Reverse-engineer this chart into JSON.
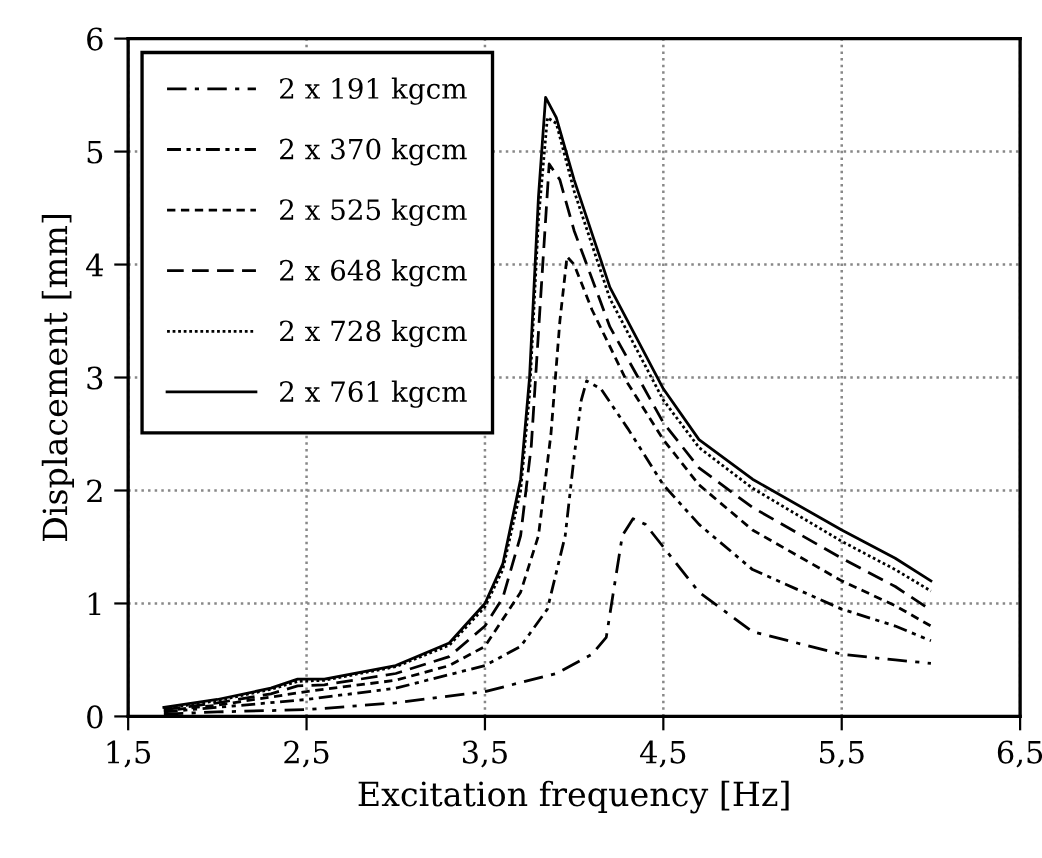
{
  "chart_data": {
    "type": "line",
    "xlabel": "Excitation frequency [Hz]",
    "ylabel": "Displacement [mm]",
    "xlim": [
      1.5,
      6.5
    ],
    "xticks": [
      {
        "value": 1.5,
        "label": "1,5"
      },
      {
        "value": 2.5,
        "label": "2,5"
      },
      {
        "value": 3.5,
        "label": "3,5"
      },
      {
        "value": 4.5,
        "label": "4,5"
      },
      {
        "value": 5.5,
        "label": "5,5"
      },
      {
        "value": 6.5,
        "label": "6,5"
      }
    ],
    "ylim": [
      0,
      6
    ],
    "yticks": [
      0,
      1,
      2,
      3,
      4,
      5,
      6
    ],
    "grid": true,
    "legend": "top left",
    "marker": "none",
    "series": [
      {
        "name": "2 x 191 kgcm",
        "color": "#000000",
        "line_style": "dashdot",
        "x": [
          1.7,
          2.0,
          2.5,
          3.0,
          3.5,
          3.9,
          4.1,
          4.18,
          4.22,
          4.27,
          4.33,
          4.4,
          4.5,
          4.7,
          5.0,
          5.5,
          5.8,
          6.0
        ],
        "values": [
          0.02,
          0.04,
          0.06,
          0.12,
          0.22,
          0.38,
          0.55,
          0.7,
          1.1,
          1.6,
          1.75,
          1.7,
          1.5,
          1.1,
          0.75,
          0.55,
          0.5,
          0.47
        ]
      },
      {
        "name": "2 x 370 kgcm",
        "color": "#000000",
        "line_style": "dashdotdot",
        "x": [
          1.7,
          2.0,
          2.5,
          3.0,
          3.5,
          3.7,
          3.85,
          3.95,
          4.0,
          4.04,
          4.07,
          4.15,
          4.3,
          4.5,
          4.7,
          5.0,
          5.5,
          5.8,
          6.0
        ],
        "values": [
          0.04,
          0.08,
          0.15,
          0.25,
          0.45,
          0.62,
          0.95,
          1.6,
          2.3,
          2.8,
          2.97,
          2.9,
          2.55,
          2.05,
          1.7,
          1.3,
          0.95,
          0.8,
          0.67
        ]
      },
      {
        "name": "2 x 525 kgcm",
        "color": "#000000",
        "line_style": "dotted",
        "x": [
          1.7,
          2.0,
          2.5,
          3.0,
          3.3,
          3.5,
          3.7,
          3.8,
          3.87,
          3.92,
          3.96,
          4.0,
          4.1,
          4.3,
          4.5,
          4.7,
          5.0,
          5.5,
          5.8,
          6.0
        ],
        "values": [
          0.05,
          0.1,
          0.22,
          0.32,
          0.45,
          0.62,
          1.1,
          1.6,
          2.5,
          3.5,
          4.07,
          4.0,
          3.6,
          2.95,
          2.45,
          2.05,
          1.65,
          1.2,
          0.98,
          0.8
        ]
      },
      {
        "name": "2 x 648 kgcm",
        "color": "#000000",
        "line_style": "dashed",
        "x": [
          1.7,
          2.0,
          2.3,
          2.45,
          2.6,
          3.0,
          3.3,
          3.5,
          3.6,
          3.7,
          3.76,
          3.82,
          3.86,
          3.92,
          4.0,
          4.2,
          4.5,
          4.7,
          5.0,
          5.5,
          5.8,
          6.0
        ],
        "values": [
          0.06,
          0.12,
          0.2,
          0.27,
          0.28,
          0.38,
          0.53,
          0.8,
          1.05,
          1.6,
          2.4,
          3.9,
          4.89,
          4.75,
          4.3,
          3.45,
          2.6,
          2.2,
          1.85,
          1.4,
          1.15,
          0.94
        ]
      },
      {
        "name": "2 x 728 kgcm",
        "color": "#000000",
        "line_style": "densedotted",
        "x": [
          1.7,
          2.0,
          2.3,
          2.45,
          2.6,
          3.0,
          3.3,
          3.5,
          3.6,
          3.7,
          3.75,
          3.8,
          3.85,
          3.9,
          4.0,
          4.2,
          4.5,
          4.7,
          5.0,
          5.5,
          5.8,
          6.0
        ],
        "values": [
          0.07,
          0.14,
          0.24,
          0.31,
          0.32,
          0.44,
          0.63,
          0.97,
          1.3,
          2.0,
          2.85,
          4.4,
          5.3,
          5.25,
          4.65,
          3.7,
          2.8,
          2.38,
          2.02,
          1.55,
          1.3,
          1.11
        ]
      },
      {
        "name": "2 x 761 kgcm",
        "color": "#000000",
        "line_style": "solid",
        "x": [
          1.7,
          2.0,
          2.3,
          2.45,
          2.6,
          3.0,
          3.3,
          3.5,
          3.6,
          3.7,
          3.75,
          3.8,
          3.84,
          3.9,
          4.0,
          4.2,
          4.5,
          4.7,
          5.0,
          5.5,
          5.8,
          6.0
        ],
        "values": [
          0.08,
          0.15,
          0.25,
          0.33,
          0.33,
          0.45,
          0.65,
          1.0,
          1.35,
          2.1,
          3.0,
          4.6,
          5.48,
          5.3,
          4.75,
          3.8,
          2.9,
          2.45,
          2.1,
          1.65,
          1.4,
          1.2
        ]
      }
    ]
  }
}
